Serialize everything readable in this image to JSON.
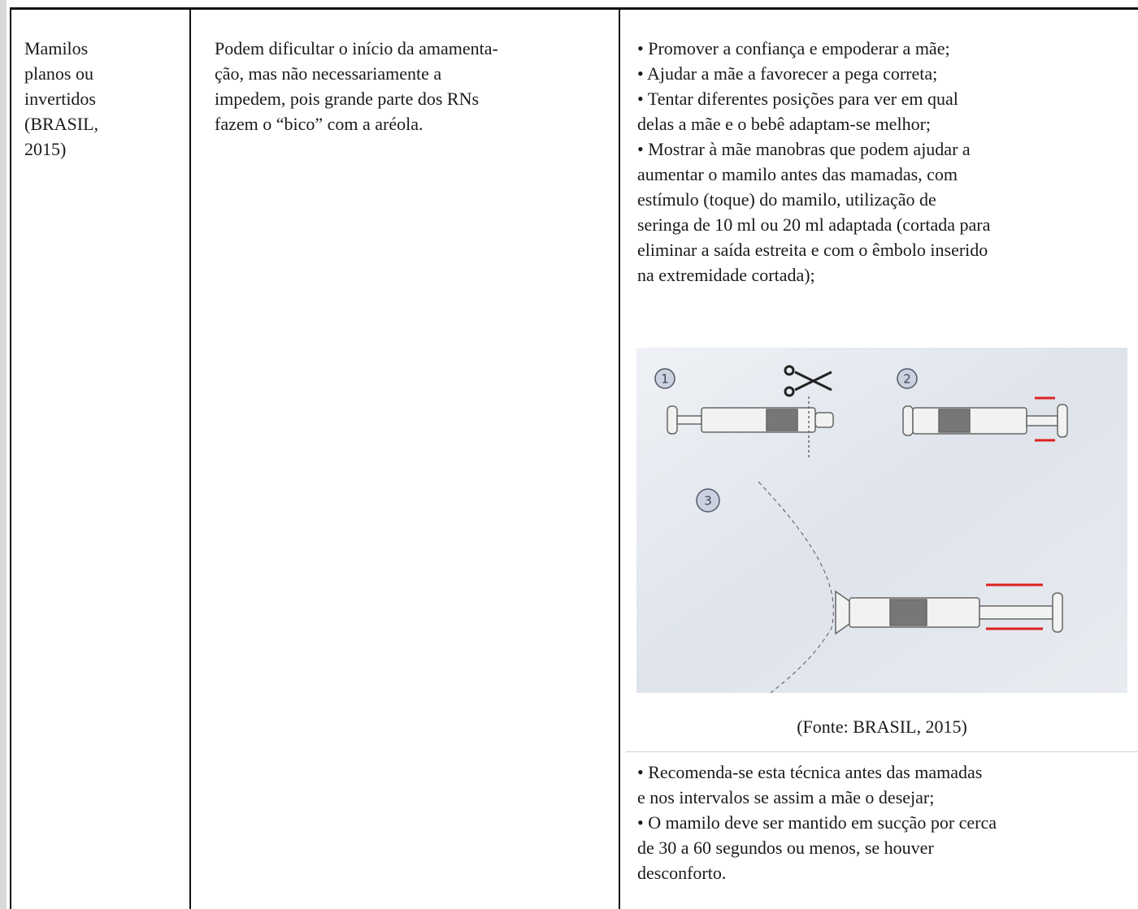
{
  "table": {
    "rows": [
      {
        "cells": [
          {
            "lines": [
              "Mamilos",
              "planos ou",
              "invertidos",
              "(BRASIL,",
              "2015)"
            ]
          },
          {
            "lines": [
              "Podem dificultar o início da amamenta-",
              "ção, mas não necessariamente a",
              "impedem, pois grande parte dos RNs",
              "fazem o “bico” com a aréola."
            ]
          },
          {
            "lines": [
              "• Promover a confiança e empoderar a mãe;",
              "• Ajudar a mãe a favorecer a pega correta;",
              "• Tentar diferentes posições para ver em qual",
              "delas a mãe e o bebê adaptam-se melhor;",
              "• Mostrar à mãe manobras que podem ajudar a",
              "aumentar o mamilo antes das mamadas, com",
              "estímulo (toque) do mamilo, utilização de",
              "seringa de 10 ml ou 20 ml adaptada (cortada para",
              "eliminar a saída estreita e com o êmbolo inserido",
              "na extremidade cortada);"
            ],
            "figure": {
              "step_labels": [
                "1",
                "2",
                "3"
              ],
              "caption": "(Fonte: BRASIL, 2015)"
            },
            "after_lines": [
              "• Recomenda-se esta técnica antes das mamadas",
              "e nos intervalos se assim a mãe o desejar;",
              "• O mamilo deve ser mantido em sucção por cerca",
              "de 30 a 60 segundos ou menos, se houver",
              "desconforto."
            ]
          }
        ]
      }
    ]
  }
}
